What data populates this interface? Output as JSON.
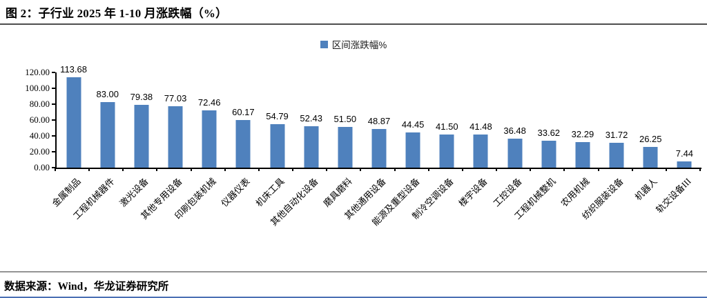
{
  "page": {
    "title": "图 2：子行业 2025 年 1-10 月涨跌幅（%）",
    "source": "数据来源：Wind，华龙证券研究所"
  },
  "legend": {
    "label": "区间涨跌幅%"
  },
  "colors": {
    "bar": "#4F81BD",
    "axis": "#000000",
    "title_rule": "#4d4d4d",
    "source_rule": "#949494",
    "bottom_accent_line": "#4a6fb4"
  },
  "chart_data": {
    "type": "bar",
    "title": "图 2：子行业 2025 年 1-10 月涨跌幅（%）",
    "legend": [
      "区间涨跌幅%"
    ],
    "legend_position": "top-center",
    "categories": [
      "金属制品",
      "工程机械器件",
      "激光设备",
      "其他专用设备",
      "印刷包装机械",
      "仪器仪表",
      "机床工具",
      "其他自动化设备",
      "磨具磨料",
      "其他通用设备",
      "能源及重型设备",
      "制冷空调设备",
      "楼宇设备",
      "工控设备",
      "工程机械整机",
      "农用机械",
      "纺织服装设备",
      "机器人",
      "轨交设备III"
    ],
    "values": [
      113.68,
      83.0,
      79.38,
      77.03,
      72.46,
      60.17,
      54.79,
      52.43,
      51.5,
      48.87,
      44.45,
      41.5,
      41.48,
      36.48,
      33.62,
      32.29,
      31.72,
      26.25,
      7.44
    ],
    "value_labels": [
      "113.68",
      "83.00",
      "79.38",
      "77.03",
      "72.46",
      "60.17",
      "54.79",
      "52.43",
      "51.50",
      "48.87",
      "44.45",
      "41.50",
      "41.48",
      "36.48",
      "33.62",
      "32.29",
      "31.72",
      "26.25",
      "7.44"
    ],
    "xlabel": "",
    "ylabel": "",
    "ylim": [
      0,
      120
    ],
    "yticks": [
      0,
      20,
      40,
      60,
      80,
      100,
      120
    ],
    "ytick_labels": [
      "0.00",
      "20.00",
      "40.00",
      "60.00",
      "80.00",
      "100.00",
      "120.00"
    ],
    "grid": false,
    "bar_color": "#4F81BD"
  }
}
